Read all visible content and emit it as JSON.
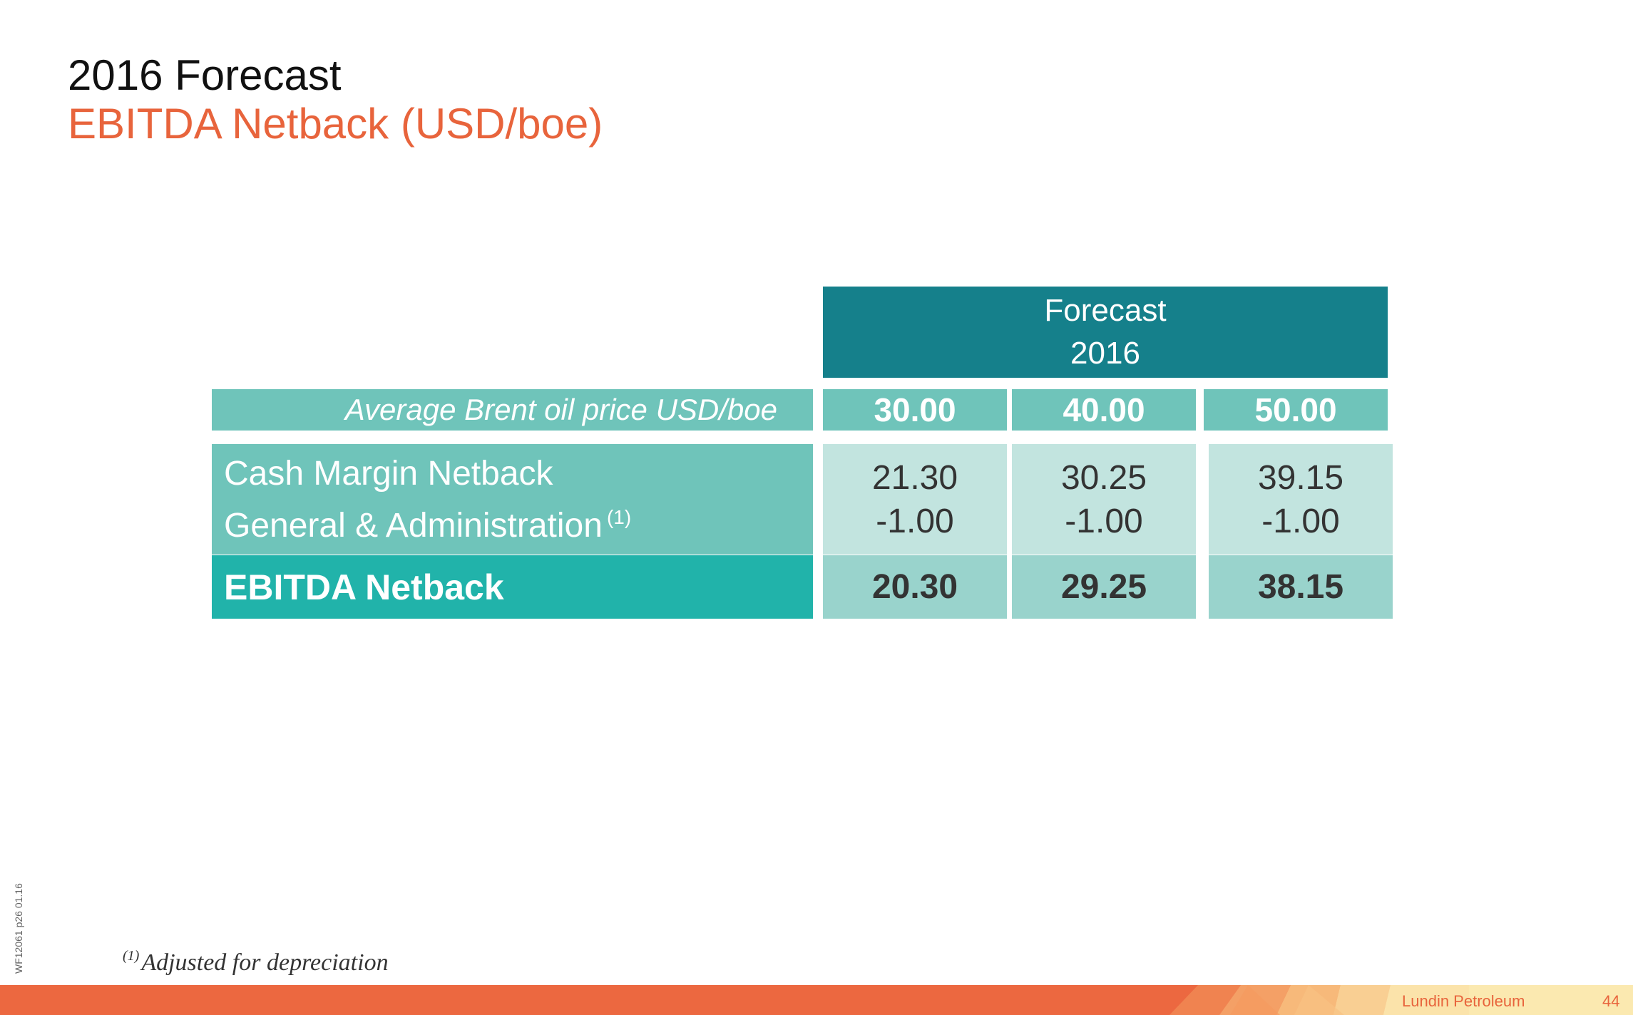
{
  "header": {
    "title": "2016 Forecast",
    "subtitle": "EBITDA Netback (USD/boe)"
  },
  "table": {
    "head_line1": "Forecast",
    "head_line2": "2016",
    "price_label": "Average Brent oil price USD/boe",
    "prices": [
      "30.00",
      "40.00",
      "50.00"
    ],
    "row1_label": "Cash Margin Netback",
    "row2_label": "General & Administration",
    "row2_note": "(1)",
    "cash_margin": [
      "21.30",
      "30.25",
      "39.15"
    ],
    "g_and_a": [
      "-1.00",
      "-1.00",
      "-1.00"
    ],
    "ebitda_label": "EBITDA Netback",
    "ebitda": [
      "20.30",
      "29.25",
      "38.15"
    ]
  },
  "footnote": {
    "marker": "(1)",
    "text": "Adjusted for depreciation"
  },
  "side_code": "WF12061   p26   01.16",
  "footer": {
    "brand": "Lundin Petroleum",
    "page": "44"
  },
  "colors": {
    "accent_orange": "#e8643c",
    "header_teal": "#15808b",
    "label_teal": "#6fc4ba",
    "ebitda_teal": "#21b3aa",
    "value_light": "#c2e4df",
    "ebitda_value": "#99d3cc"
  }
}
